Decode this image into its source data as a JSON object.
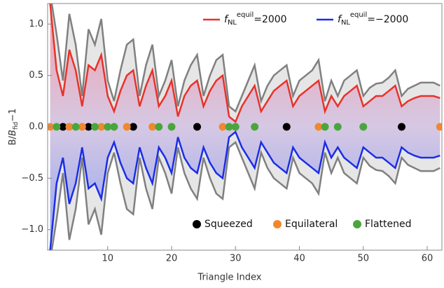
{
  "chart_data": {
    "type": "line",
    "xlabel": "Triangle Index",
    "ylabel_parts": [
      "B/",
      "B",
      "fid",
      "−1"
    ],
    "legend_symbol": {
      "base": "f",
      "sub": "NL",
      "sup": "equil"
    },
    "xlim": [
      0.6,
      62.3
    ],
    "ylim": [
      -1.2,
      1.2
    ],
    "xticks": [
      10,
      20,
      30,
      40,
      50,
      60
    ],
    "yticks": [
      {
        "value": -1.0,
        "label": "−1.0"
      },
      {
        "value": -0.5,
        "label": "−0.5"
      },
      {
        "value": 0,
        "label": "0.0"
      },
      {
        "value": 0.5,
        "label": "0.5"
      },
      {
        "value": 1.0,
        "label": "1.0"
      }
    ],
    "x": [
      1,
      2,
      3,
      4,
      5,
      6,
      7,
      8,
      9,
      10,
      11,
      12,
      13,
      14,
      15,
      16,
      17,
      18,
      19,
      20,
      21,
      22,
      23,
      24,
      25,
      26,
      27,
      28,
      29,
      30,
      31,
      32,
      33,
      34,
      35,
      36,
      37,
      38,
      39,
      40,
      41,
      42,
      43,
      44,
      45,
      46,
      47,
      48,
      49,
      50,
      51,
      52,
      53,
      54,
      55,
      56,
      57,
      58,
      59,
      60,
      61,
      62
    ],
    "series": [
      {
        "name": "=2000",
        "color": "#e8322a",
        "values": [
          1.2,
          0.55,
          0.3,
          0.75,
          0.55,
          0.2,
          0.6,
          0.55,
          0.7,
          0.3,
          0.15,
          0.35,
          0.5,
          0.55,
          0.2,
          0.4,
          0.55,
          0.2,
          0.3,
          0.45,
          0.1,
          0.3,
          0.4,
          0.45,
          0.2,
          0.35,
          0.45,
          0.5,
          0.1,
          0.05,
          0.2,
          0.3,
          0.4,
          0.15,
          0.25,
          0.35,
          0.4,
          0.45,
          0.2,
          0.3,
          0.35,
          0.4,
          0.45,
          0.15,
          0.3,
          0.2,
          0.3,
          0.35,
          0.4,
          0.2,
          0.25,
          0.3,
          0.3,
          0.35,
          0.4,
          0.2,
          0.25,
          0.28,
          0.3,
          0.3,
          0.3,
          0.28
        ]
      },
      {
        "name": "=−2000",
        "color": "#1a2de8",
        "values": [
          -1.2,
          -0.55,
          -0.3,
          -0.75,
          -0.55,
          -0.2,
          -0.6,
          -0.55,
          -0.7,
          -0.3,
          -0.15,
          -0.35,
          -0.5,
          -0.55,
          -0.2,
          -0.4,
          -0.55,
          -0.2,
          -0.3,
          -0.45,
          -0.1,
          -0.3,
          -0.4,
          -0.45,
          -0.2,
          -0.35,
          -0.45,
          -0.5,
          -0.1,
          -0.05,
          -0.2,
          -0.3,
          -0.4,
          -0.15,
          -0.25,
          -0.35,
          -0.4,
          -0.45,
          -0.2,
          -0.3,
          -0.35,
          -0.4,
          -0.45,
          -0.15,
          -0.3,
          -0.2,
          -0.3,
          -0.35,
          -0.4,
          -0.2,
          -0.25,
          -0.3,
          -0.3,
          -0.35,
          -0.4,
          -0.2,
          -0.25,
          -0.28,
          -0.3,
          -0.3,
          -0.3,
          -0.28
        ]
      }
    ],
    "band": {
      "color": "#808080",
      "upper": [
        1.3,
        0.9,
        0.45,
        1.1,
        0.8,
        0.3,
        0.95,
        0.8,
        1.05,
        0.45,
        0.25,
        0.55,
        0.8,
        0.85,
        0.3,
        0.6,
        0.8,
        0.3,
        0.45,
        0.65,
        0.2,
        0.45,
        0.6,
        0.7,
        0.3,
        0.5,
        0.65,
        0.7,
        0.2,
        0.15,
        0.3,
        0.45,
        0.6,
        0.25,
        0.4,
        0.5,
        0.55,
        0.6,
        0.3,
        0.45,
        0.5,
        0.55,
        0.65,
        0.25,
        0.45,
        0.3,
        0.45,
        0.5,
        0.55,
        0.3,
        0.38,
        0.42,
        0.43,
        0.48,
        0.55,
        0.3,
        0.37,
        0.4,
        0.43,
        0.43,
        0.43,
        0.4
      ],
      "lower": [
        -1.3,
        -0.9,
        -0.45,
        -1.1,
        -0.8,
        -0.3,
        -0.95,
        -0.8,
        -1.05,
        -0.45,
        -0.25,
        -0.55,
        -0.8,
        -0.85,
        -0.3,
        -0.6,
        -0.8,
        -0.3,
        -0.45,
        -0.65,
        -0.2,
        -0.45,
        -0.6,
        -0.7,
        -0.3,
        -0.5,
        -0.65,
        -0.7,
        -0.2,
        -0.15,
        -0.3,
        -0.45,
        -0.6,
        -0.25,
        -0.4,
        -0.5,
        -0.55,
        -0.6,
        -0.3,
        -0.45,
        -0.5,
        -0.55,
        -0.65,
        -0.25,
        -0.45,
        -0.3,
        -0.45,
        -0.5,
        -0.55,
        -0.3,
        -0.38,
        -0.42,
        -0.43,
        -0.48,
        -0.55,
        -0.3,
        -0.37,
        -0.4,
        -0.43,
        -0.43,
        -0.43,
        -0.4
      ]
    },
    "points": [
      {
        "name": "Squeezed",
        "color": "#000000",
        "x": [
          3,
          7,
          14,
          24,
          38,
          56
        ],
        "values": [
          0,
          0,
          0,
          0,
          0,
          0
        ]
      },
      {
        "name": "Equilateral",
        "color": "#f0882f",
        "x": [
          1,
          4,
          6,
          9,
          13,
          17,
          28,
          43,
          62
        ],
        "values": [
          0,
          0,
          0,
          0,
          0,
          0,
          0,
          0,
          0
        ]
      },
      {
        "name": "Flattened",
        "color": "#4aa63c",
        "x": [
          2,
          5,
          8,
          10,
          11,
          18,
          20,
          29,
          30,
          33,
          44,
          46,
          50
        ],
        "values": [
          0,
          0,
          0,
          0,
          0,
          0,
          0,
          0,
          0,
          0,
          0,
          0,
          0
        ]
      }
    ]
  }
}
